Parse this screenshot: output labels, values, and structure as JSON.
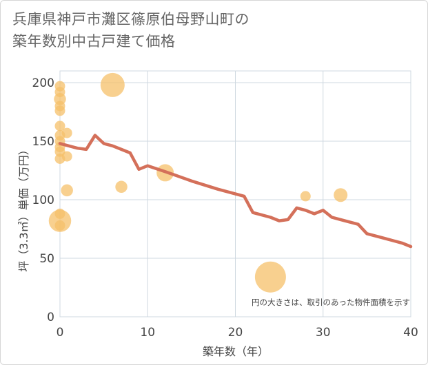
{
  "chart_data": {
    "type": "scatter",
    "title_line1": "兵庫県神戸市灘区篠原伯母野山町の",
    "title_line2": "築年数別中古戸建て価格",
    "xlabel": "築年数（年）",
    "ylabel": "坪（3.3㎡）単価（万円）",
    "note": "円の大きさは、取引のあった物件面積を示す",
    "xlim": [
      0,
      40
    ],
    "ylim": [
      0,
      210
    ],
    "xticks": [
      0,
      10,
      20,
      30,
      40
    ],
    "yticks": [
      0,
      50,
      100,
      150,
      200
    ],
    "xtick_labels": [
      "0",
      "10",
      "20",
      "30",
      "40"
    ],
    "ytick_labels": [
      "0",
      "50",
      "100",
      "150",
      "200"
    ],
    "bubble_color": "#f5c06a",
    "line_color": "#d4705a",
    "bubbles": [
      {
        "x": 0,
        "y": 197,
        "size": 2
      },
      {
        "x": 0,
        "y": 192,
        "size": 2
      },
      {
        "x": 0,
        "y": 186,
        "size": 3
      },
      {
        "x": 0,
        "y": 180,
        "size": 2
      },
      {
        "x": 0,
        "y": 176,
        "size": 2
      },
      {
        "x": 0,
        "y": 163,
        "size": 2
      },
      {
        "x": 0,
        "y": 155,
        "size": 2
      },
      {
        "x": 0,
        "y": 150,
        "size": 2
      },
      {
        "x": 0,
        "y": 145,
        "size": 2
      },
      {
        "x": 0,
        "y": 141,
        "size": 2
      },
      {
        "x": 0,
        "y": 135,
        "size": 2
      },
      {
        "x": 0,
        "y": 88,
        "size": 2
      },
      {
        "x": 0,
        "y": 82,
        "size": 9
      },
      {
        "x": 0,
        "y": 78,
        "size": 2
      },
      {
        "x": 0.8,
        "y": 157,
        "size": 2
      },
      {
        "x": 0.8,
        "y": 137,
        "size": 2
      },
      {
        "x": 0.8,
        "y": 108,
        "size": 3
      },
      {
        "x": 6,
        "y": 198,
        "size": 10
      },
      {
        "x": 7,
        "y": 111,
        "size": 3
      },
      {
        "x": 12,
        "y": 123,
        "size": 6
      },
      {
        "x": 24,
        "y": 34,
        "size": 14
      },
      {
        "x": 28,
        "y": 103,
        "size": 2
      },
      {
        "x": 32,
        "y": 104,
        "size": 4
      }
    ],
    "trend_line": {
      "x": [
        0,
        1,
        2,
        3,
        4,
        5,
        6,
        7,
        8,
        9,
        10,
        12,
        15,
        18,
        21,
        22,
        23,
        24,
        25,
        26,
        27,
        28,
        29,
        30,
        31,
        32,
        33,
        34,
        35,
        36,
        37,
        38,
        39,
        40
      ],
      "y": [
        148,
        146,
        144,
        143,
        155,
        148,
        146,
        143,
        140,
        126,
        129,
        124,
        116,
        109,
        103,
        89,
        87,
        85,
        82,
        83,
        93,
        91,
        88,
        91,
        85,
        83,
        81,
        79,
        71,
        69,
        67,
        65,
        63,
        60
      ]
    }
  }
}
